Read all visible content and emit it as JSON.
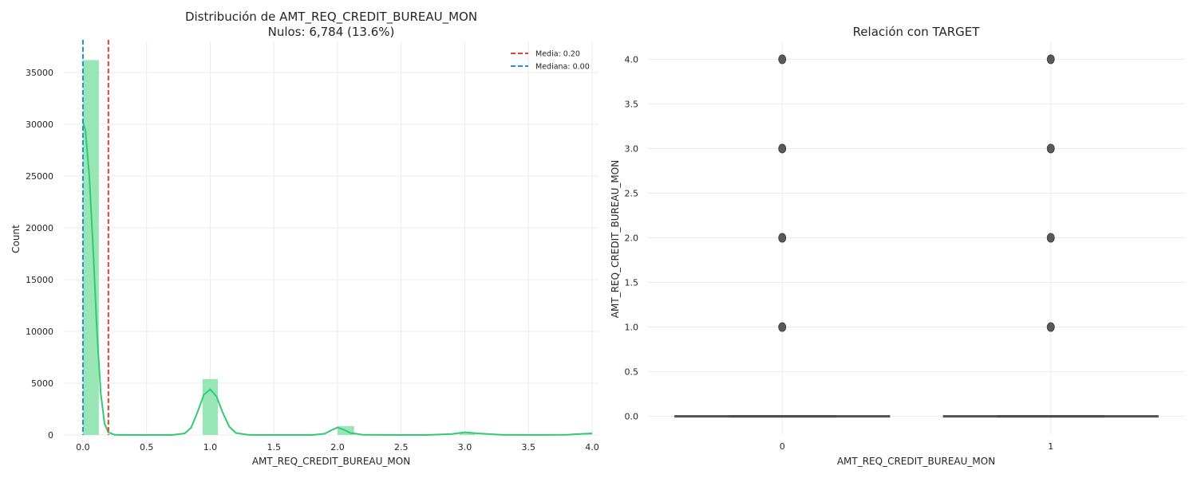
{
  "chart_data": [
    {
      "type": "bar",
      "title": "Distribución de AMT_REQ_CREDIT_BUREAU_MON",
      "subtitle": "Nulos: 6,784 (13.6%)",
      "xlabel": "AMT_REQ_CREDIT_BUREAU_MON",
      "ylabel": "Count",
      "xlim": [
        -0.15,
        4.05
      ],
      "ylim": [
        0,
        38000
      ],
      "xticks": [
        "0.0",
        "0.5",
        "1.0",
        "1.5",
        "2.0",
        "2.5",
        "3.0",
        "3.5",
        "4.0"
      ],
      "yticks": [
        "0",
        "5000",
        "10000",
        "15000",
        "20000",
        "25000",
        "30000",
        "35000"
      ],
      "grid": true,
      "legend_position": "top-right",
      "bins": [
        {
          "x0": 0.0,
          "x1": 0.125,
          "count": 36200
        },
        {
          "x0": 0.94,
          "x1": 1.06,
          "count": 5400
        },
        {
          "x0": 2.0,
          "x1": 2.13,
          "count": 850
        },
        {
          "x0": 2.96,
          "x1": 3.08,
          "count": 160
        },
        {
          "x0": 3.96,
          "x1": 4.0,
          "count": 30
        }
      ],
      "kde": {
        "x": [
          0.0,
          0.02,
          0.05,
          0.08,
          0.11,
          0.14,
          0.17,
          0.2,
          0.25,
          0.3,
          0.4,
          0.5,
          0.6,
          0.7,
          0.8,
          0.85,
          0.9,
          0.95,
          1.0,
          1.05,
          1.1,
          1.15,
          1.2,
          1.3,
          1.4,
          1.6,
          1.8,
          1.9,
          1.95,
          2.0,
          2.05,
          2.1,
          2.2,
          2.4,
          2.7,
          2.9,
          3.0,
          3.1,
          3.3,
          3.6,
          3.8,
          3.9,
          4.0
        ],
        "y": [
          30200,
          29400,
          25000,
          18000,
          10000,
          4000,
          1100,
          250,
          20,
          0,
          0,
          0,
          0,
          0,
          150,
          700,
          2200,
          3900,
          4400,
          3700,
          2100,
          800,
          200,
          10,
          0,
          0,
          0,
          120,
          450,
          720,
          500,
          200,
          20,
          0,
          0,
          100,
          260,
          150,
          10,
          0,
          20,
          90,
          150
        ]
      },
      "lines": [
        {
          "label": "Media: 0.20",
          "x": 0.2,
          "color": "#e8402f"
        },
        {
          "label": "Mediana: 0.00",
          "x": 0.0,
          "color": "#2a8ad4"
        }
      ],
      "colors": {
        "bar": "#92e5b1",
        "kde": "#2ecc71"
      }
    },
    {
      "type": "box",
      "title": "Relación con TARGET",
      "xlabel": "AMT_REQ_CREDIT_BUREAU_MON",
      "ylabel": "AMT_REQ_CREDIT_BUREAU_MON",
      "categories": [
        "0",
        "1"
      ],
      "ylim": [
        -0.2,
        4.2
      ],
      "yticks": [
        "0.0",
        "0.5",
        "1.0",
        "1.5",
        "2.0",
        "2.5",
        "3.0",
        "3.5",
        "4.0"
      ],
      "grid": true,
      "boxes": [
        {
          "category": "0",
          "q1": 0,
          "median": 0,
          "q3": 0,
          "whisker_low": 0,
          "whisker_high": 0,
          "outliers": [
            1,
            2,
            3,
            4
          ]
        },
        {
          "category": "1",
          "q1": 0,
          "median": 0,
          "q3": 0,
          "whisker_low": 0,
          "whisker_high": 0,
          "outliers": [
            1,
            2,
            3,
            4
          ]
        }
      ],
      "colors": {
        "box": "#4d4d4d",
        "outlier": "#5a5a5a"
      }
    }
  ]
}
